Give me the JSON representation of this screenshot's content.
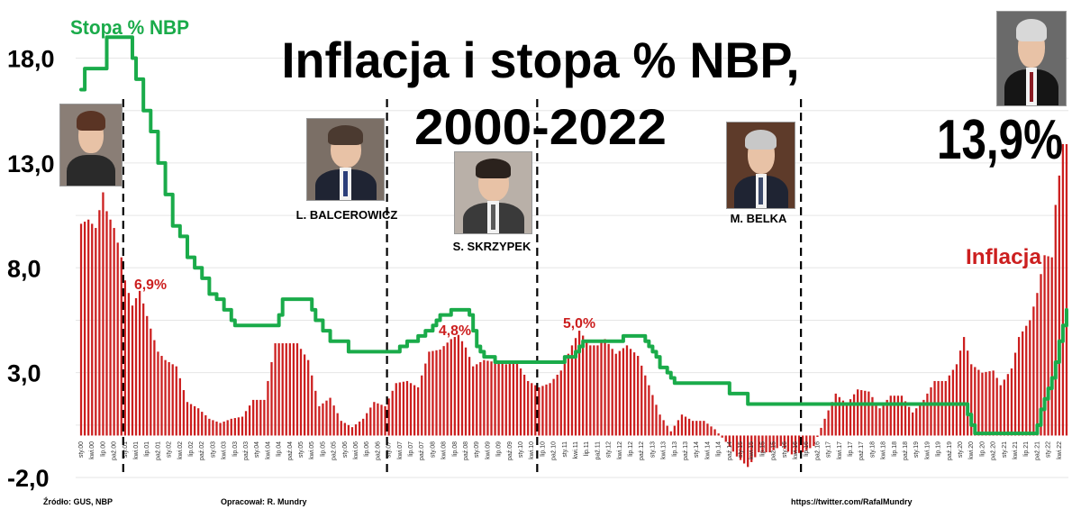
{
  "chart_data": {
    "type": "line",
    "title": "Inflacja i stopa % NBP,",
    "subtitle": "2000-2022",
    "xlabel": "",
    "ylabel": "",
    "ylim": [
      -2,
      20
    ],
    "yticks": [
      18.0,
      13.0,
      8.0,
      3.0,
      -2.0
    ],
    "ytick_labels": [
      "18,0",
      "13,0",
      "8,0",
      "3,0",
      "-2,0"
    ],
    "grid": true,
    "x_start": "2000-01",
    "x_end": "2022-06",
    "xtick_labels": [
      "sty.00",
      "kwi.00",
      "lip.00",
      "paź.00",
      "sty.01",
      "kwi.01",
      "lip.01",
      "paź.01",
      "sty.02",
      "kwi.02",
      "lip.02",
      "paź.02",
      "sty.03",
      "kwi.03",
      "lip.03",
      "paź.03",
      "sty.04",
      "kwi.04",
      "lip.04",
      "paź.04",
      "sty.05",
      "kwi.05",
      "lip.05",
      "paź.05",
      "sty.06",
      "kwi.06",
      "lip.06",
      "paź.06",
      "sty.07",
      "kwi.07",
      "lip.07",
      "paź.07",
      "sty.08",
      "kwi.08",
      "lip.08",
      "paź.08",
      "sty.09",
      "kwi.09",
      "lip.09",
      "paź.09",
      "sty.10",
      "kwi.10",
      "lip.10",
      "paź.10",
      "sty.11",
      "kwi.11",
      "lip.11",
      "paź.11",
      "sty.12",
      "kwi.12",
      "lip.12",
      "paź.12",
      "sty.13",
      "kwi.13",
      "lip.13",
      "paź.13",
      "sty.14",
      "kwi.14",
      "lip.14",
      "paź.14",
      "sty.15",
      "kwi.15",
      "lip.15",
      "paź.15",
      "sty.16",
      "kwi.16",
      "lip.16",
      "paź.16",
      "sty.17",
      "kwi.17",
      "lip.17",
      "paź.17",
      "sty.18",
      "kwi.18",
      "lip.18",
      "paź.18",
      "sty.19",
      "kwi.19",
      "lip.19",
      "paź.19",
      "sty.20",
      "kwi.20",
      "lip.20",
      "paź.20",
      "sty.21",
      "kwi.21",
      "lip.21",
      "paź.21",
      "sty.22",
      "kwi.22"
    ],
    "series": [
      {
        "name": "Inflacja",
        "type": "bar",
        "color": "#cc1f1f",
        "anchors": [
          [
            "2000-01",
            10.1
          ],
          [
            "2000-03",
            10.3
          ],
          [
            "2000-05",
            9.9
          ],
          [
            "2000-07",
            11.6
          ],
          [
            "2000-08",
            10.7
          ],
          [
            "2000-10",
            9.9
          ],
          [
            "2000-12",
            8.5
          ],
          [
            "2001-01",
            7.4
          ],
          [
            "2001-03",
            6.2
          ],
          [
            "2001-05",
            6.9
          ],
          [
            "2001-08",
            5.1
          ],
          [
            "2001-10",
            4.0
          ],
          [
            "2001-12",
            3.6
          ],
          [
            "2002-03",
            3.3
          ],
          [
            "2002-06",
            1.6
          ],
          [
            "2002-09",
            1.3
          ],
          [
            "2002-12",
            0.8
          ],
          [
            "2003-03",
            0.6
          ],
          [
            "2003-06",
            0.8
          ],
          [
            "2003-09",
            0.9
          ],
          [
            "2003-12",
            1.7
          ],
          [
            "2004-03",
            1.7
          ],
          [
            "2004-06",
            4.4
          ],
          [
            "2004-09",
            4.4
          ],
          [
            "2004-12",
            4.4
          ],
          [
            "2005-03",
            3.6
          ],
          [
            "2005-06",
            1.4
          ],
          [
            "2005-09",
            1.8
          ],
          [
            "2005-12",
            0.7
          ],
          [
            "2006-03",
            0.4
          ],
          [
            "2006-06",
            0.8
          ],
          [
            "2006-09",
            1.6
          ],
          [
            "2006-12",
            1.4
          ],
          [
            "2007-03",
            2.5
          ],
          [
            "2007-06",
            2.6
          ],
          [
            "2007-09",
            2.3
          ],
          [
            "2007-12",
            4.0
          ],
          [
            "2008-03",
            4.1
          ],
          [
            "2008-06",
            4.6
          ],
          [
            "2008-08",
            4.8
          ],
          [
            "2008-10",
            4.2
          ],
          [
            "2008-12",
            3.3
          ],
          [
            "2009-03",
            3.6
          ],
          [
            "2009-06",
            3.5
          ],
          [
            "2009-09",
            3.4
          ],
          [
            "2009-12",
            3.5
          ],
          [
            "2010-03",
            2.6
          ],
          [
            "2010-06",
            2.3
          ],
          [
            "2010-09",
            2.5
          ],
          [
            "2010-12",
            3.1
          ],
          [
            "2011-03",
            4.3
          ],
          [
            "2011-05",
            5.0
          ],
          [
            "2011-08",
            4.3
          ],
          [
            "2011-10",
            4.3
          ],
          [
            "2011-12",
            4.6
          ],
          [
            "2012-03",
            3.9
          ],
          [
            "2012-06",
            4.3
          ],
          [
            "2012-09",
            3.8
          ],
          [
            "2012-12",
            2.4
          ],
          [
            "2013-03",
            1.0
          ],
          [
            "2013-06",
            0.2
          ],
          [
            "2013-09",
            1.0
          ],
          [
            "2013-12",
            0.7
          ],
          [
            "2014-03",
            0.7
          ],
          [
            "2014-06",
            0.3
          ],
          [
            "2014-09",
            -0.3
          ],
          [
            "2014-12",
            -1.0
          ],
          [
            "2015-03",
            -1.5
          ],
          [
            "2015-06",
            -0.8
          ],
          [
            "2015-09",
            -0.8
          ],
          [
            "2015-12",
            -0.5
          ],
          [
            "2016-03",
            -0.9
          ],
          [
            "2016-06",
            -0.8
          ],
          [
            "2016-09",
            -0.5
          ],
          [
            "2016-12",
            0.8
          ],
          [
            "2017-03",
            2.0
          ],
          [
            "2017-06",
            1.5
          ],
          [
            "2017-09",
            2.2
          ],
          [
            "2017-12",
            2.1
          ],
          [
            "2018-03",
            1.3
          ],
          [
            "2018-06",
            1.9
          ],
          [
            "2018-09",
            1.9
          ],
          [
            "2018-12",
            1.1
          ],
          [
            "2019-03",
            1.7
          ],
          [
            "2019-06",
            2.6
          ],
          [
            "2019-09",
            2.6
          ],
          [
            "2019-12",
            3.4
          ],
          [
            "2020-02",
            4.7
          ],
          [
            "2020-04",
            3.4
          ],
          [
            "2020-07",
            3.0
          ],
          [
            "2020-10",
            3.1
          ],
          [
            "2020-12",
            2.4
          ],
          [
            "2021-03",
            3.2
          ],
          [
            "2021-05",
            4.7
          ],
          [
            "2021-08",
            5.5
          ],
          [
            "2021-10",
            6.8
          ],
          [
            "2021-12",
            8.6
          ],
          [
            "2022-02",
            8.5
          ],
          [
            "2022-03",
            11.0
          ],
          [
            "2022-04",
            12.4
          ],
          [
            "2022-05",
            13.9
          ],
          [
            "2022-06",
            13.9
          ]
        ]
      },
      {
        "name": "Stopa % NBP",
        "type": "line",
        "color": "#1aab4a",
        "steps": [
          [
            "2000-01",
            16.5
          ],
          [
            "2000-02",
            17.5
          ],
          [
            "2000-08",
            19.0
          ],
          [
            "2001-03",
            18.0
          ],
          [
            "2001-04",
            17.0
          ],
          [
            "2001-06",
            15.5
          ],
          [
            "2001-08",
            14.5
          ],
          [
            "2001-10",
            13.0
          ],
          [
            "2001-12",
            11.5
          ],
          [
            "2002-02",
            10.0
          ],
          [
            "2002-04",
            9.5
          ],
          [
            "2002-06",
            8.5
          ],
          [
            "2002-08",
            8.0
          ],
          [
            "2002-10",
            7.5
          ],
          [
            "2002-12",
            6.75
          ],
          [
            "2003-02",
            6.5
          ],
          [
            "2003-04",
            6.0
          ],
          [
            "2003-06",
            5.5
          ],
          [
            "2003-07",
            5.25
          ],
          [
            "2004-07",
            5.75
          ],
          [
            "2004-08",
            6.5
          ],
          [
            "2005-04",
            6.0
          ],
          [
            "2005-05",
            5.5
          ],
          [
            "2005-07",
            5.0
          ],
          [
            "2005-09",
            4.5
          ],
          [
            "2006-02",
            4.0
          ],
          [
            "2007-04",
            4.25
          ],
          [
            "2007-06",
            4.5
          ],
          [
            "2007-09",
            4.75
          ],
          [
            "2007-11",
            5.0
          ],
          [
            "2008-01",
            5.25
          ],
          [
            "2008-02",
            5.5
          ],
          [
            "2008-03",
            5.75
          ],
          [
            "2008-06",
            6.0
          ],
          [
            "2008-11",
            5.75
          ],
          [
            "2008-12",
            5.0
          ],
          [
            "2009-01",
            4.25
          ],
          [
            "2009-02",
            4.0
          ],
          [
            "2009-03",
            3.75
          ],
          [
            "2009-06",
            3.5
          ],
          [
            "2011-01",
            3.75
          ],
          [
            "2011-04",
            4.0
          ],
          [
            "2011-05",
            4.25
          ],
          [
            "2011-06",
            4.5
          ],
          [
            "2012-05",
            4.75
          ],
          [
            "2012-11",
            4.5
          ],
          [
            "2012-12",
            4.25
          ],
          [
            "2013-01",
            4.0
          ],
          [
            "2013-02",
            3.75
          ],
          [
            "2013-03",
            3.25
          ],
          [
            "2013-05",
            3.0
          ],
          [
            "2013-06",
            2.75
          ],
          [
            "2013-07",
            2.5
          ],
          [
            "2014-10",
            2.0
          ],
          [
            "2015-03",
            1.5
          ],
          [
            "2020-03",
            1.0
          ],
          [
            "2020-04",
            0.5
          ],
          [
            "2020-05",
            0.1
          ],
          [
            "2021-10",
            0.5
          ],
          [
            "2021-11",
            1.25
          ],
          [
            "2021-12",
            1.75
          ],
          [
            "2022-01",
            2.25
          ],
          [
            "2022-02",
            2.75
          ],
          [
            "2022-03",
            3.5
          ],
          [
            "2022-04",
            4.5
          ],
          [
            "2022-05",
            5.25
          ],
          [
            "2022-06",
            6.0
          ]
        ]
      }
    ],
    "governors": [
      {
        "label": "",
        "start": "2000-01",
        "end": "2001-01"
      },
      {
        "label": "L. BALCEROWICZ",
        "start": "2001-01",
        "end": "2007-01"
      },
      {
        "label": "S. SKRZYPEK",
        "start": "2007-01",
        "end": "2010-06"
      },
      {
        "label": "M. BELKA",
        "start": "2010-06",
        "end": "2016-06"
      },
      {
        "label": "",
        "start": "2016-06",
        "end": "2022-06"
      }
    ],
    "annotations": [
      {
        "text": "Stopa % NBP",
        "at": [
          "2001-04",
          20.0
        ],
        "color": "#1aab4a"
      },
      {
        "text": "Inflacja",
        "at": [
          "2021-07",
          9.9
        ],
        "color": "#cc1f1f"
      },
      {
        "text": "6,9%",
        "at": [
          "2001-07",
          7.2
        ],
        "color": "#cc1f1f"
      },
      {
        "text": "4,8%",
        "at": [
          "2008-05",
          5.1
        ],
        "color": "#cc1f1f"
      },
      {
        "text": "5,0%",
        "at": [
          "2011-06",
          5.3
        ],
        "color": "#cc1f1f"
      },
      {
        "text": "13,9%",
        "at": [
          "2021-05",
          13.0
        ],
        "color": "#000000"
      }
    ]
  },
  "footer": {
    "source": "Źródło: GUS, NBP",
    "author": "Opracował: R. Mundry",
    "link": "https://twitter.com/RafalMundry"
  },
  "colors": {
    "inflation": "#cc1f1f",
    "rate": "#1aab4a",
    "grid": "#e6e6e6",
    "divider": "#000000"
  },
  "icons": [
    "portrait-photo-gronkiewicz-waltz",
    "portrait-photo-balcerowicz",
    "portrait-photo-skrzypek",
    "portrait-photo-belka",
    "portrait-photo-glapinski"
  ]
}
